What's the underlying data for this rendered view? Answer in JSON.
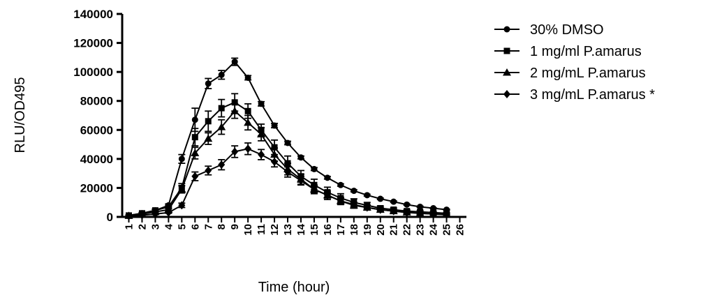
{
  "chart_data": {
    "type": "line",
    "title": "",
    "xlabel": "Time (hour)",
    "ylabel": "RLU/OD495",
    "ylim": [
      0,
      140000
    ],
    "yticks": [
      "0",
      "20000",
      "40000",
      "60000",
      "80000",
      "100000",
      "120000",
      "140000"
    ],
    "x": [
      1,
      2,
      3,
      4,
      5,
      6,
      7,
      8,
      9,
      10,
      11,
      12,
      13,
      14,
      15,
      16,
      17,
      18,
      19,
      20,
      21,
      22,
      23,
      24,
      25
    ],
    "xticks": [
      "1",
      "2",
      "3",
      "4",
      "5",
      "6",
      "7",
      "8",
      "9",
      "10",
      "11",
      "12",
      "13",
      "14",
      "15",
      "16",
      "17",
      "18",
      "19",
      "20",
      "21",
      "22",
      "23",
      "24",
      "25",
      "26"
    ],
    "legend_position": "top-right",
    "grid": false,
    "series": [
      {
        "name": "30% DMSO",
        "marker": "circle",
        "values": [
          1000,
          2500,
          4500,
          8000,
          40000,
          67000,
          92000,
          98000,
          107000,
          96000,
          78000,
          63000,
          51000,
          41000,
          33000,
          27000,
          22000,
          18000,
          15000,
          12500,
          10500,
          8500,
          7000,
          6000,
          5000
        ],
        "errors": [
          300,
          500,
          800,
          1000,
          3000,
          8000,
          3500,
          3000,
          2500,
          1500,
          1500,
          1500,
          1200,
          1000,
          1000,
          900,
          800,
          700,
          600,
          500,
          500,
          400,
          400,
          300,
          300
        ]
      },
      {
        "name": "1 mg/ml P.amarus",
        "marker": "square",
        "values": [
          1000,
          2500,
          4500,
          7000,
          20000,
          55000,
          66000,
          75000,
          79000,
          73000,
          60000,
          48000,
          37000,
          28000,
          22000,
          17000,
          13000,
          10000,
          8000,
          6000,
          5000,
          4000,
          3500,
          3000,
          2500
        ],
        "errors": [
          300,
          500,
          700,
          1000,
          3000,
          6000,
          7000,
          6000,
          6000,
          5000,
          4000,
          5000,
          5000,
          4000,
          4000,
          3500,
          3000,
          2500,
          2000,
          1500,
          1200,
          1000,
          800,
          700,
          600
        ]
      },
      {
        "name": "2 mg/mL P.amarus",
        "marker": "triangle",
        "values": [
          800,
          2000,
          3500,
          5000,
          19000,
          44000,
          54000,
          62000,
          73000,
          65000,
          57000,
          43000,
          33000,
          26000,
          19000,
          15000,
          11000,
          8000,
          6500,
          5000,
          4000,
          3200,
          2500,
          2000,
          1700
        ],
        "errors": [
          300,
          500,
          600,
          800,
          2500,
          4000,
          4000,
          5000,
          5000,
          5000,
          4500,
          4500,
          4000,
          3500,
          3000,
          3000,
          2500,
          2000,
          1800,
          1500,
          1200,
          1000,
          800,
          600,
          500
        ]
      },
      {
        "name": "3 mg/mL P.amarus *",
        "marker": "diamond",
        "values": [
          600,
          1200,
          2000,
          3000,
          8000,
          28000,
          32000,
          36000,
          45000,
          47000,
          43000,
          38000,
          31000,
          25000,
          19000,
          15000,
          11000,
          8500,
          6500,
          5000,
          4000,
          3000,
          2500,
          2000,
          1500
        ],
        "errors": [
          200,
          300,
          400,
          500,
          1500,
          3000,
          3000,
          3500,
          4000,
          4000,
          3500,
          3500,
          3500,
          3000,
          2500,
          2000,
          1800,
          1500,
          1300,
          1100,
          1000,
          800,
          600,
          500,
          400
        ]
      }
    ]
  }
}
